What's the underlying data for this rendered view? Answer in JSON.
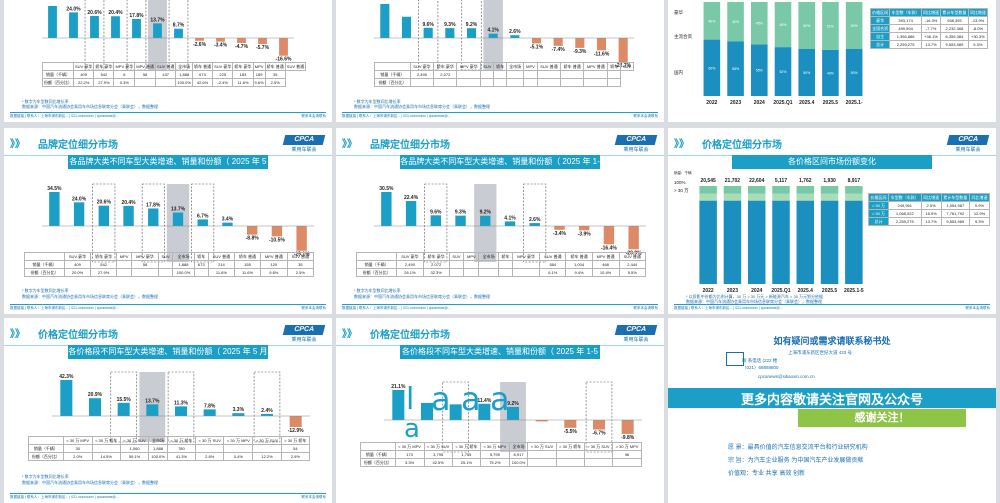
{
  "colors": {
    "bar": "#1c9fc6",
    "neg": "#dd8a66",
    "hatch": "#c9ccd2",
    "green": "#79c9a8",
    "green2": "#a8ddb5",
    "dark": "#1a6fb0"
  },
  "common": {
    "arrows": "》》",
    "logo_text": "CPCA",
    "logo_sub": "乘用车联会",
    "footer_left": "数据链接 | 联系人：上海市浦东新区... | 021-xxxxxxxxx | cpcanews@...",
    "footer_right": "联系本会请联系"
  },
  "slides": [
    {
      "id": "s1",
      "chart_data": {
        "type": "bar",
        "categories": [
          "SUV 豪华",
          "轿车 豪华",
          "MPV 豪华",
          "MPV 普通",
          "SUV 普通",
          "全市场",
          "轿车 普通",
          "SUV 豪华",
          "轿车 豪华",
          "MPV",
          "轿车 普通",
          "SUV 普通"
        ],
        "values": [
          30.0,
          24.0,
          20.6,
          20.4,
          17.8,
          13.7,
          8.7,
          -2.6,
          -3.4,
          -4.7,
          -5.7,
          -16.6
        ],
        "labels": [
          "",
          "24.0%",
          "20.6%",
          "20.4%",
          "17.8%",
          "13.7%",
          "8.7%",
          "-2.6%",
          "-3.4%",
          "-4.7%",
          "-5.7%",
          "-16.6%"
        ]
      },
      "table": {
        "rows": [
          [
            "销量（千辆）",
            "409",
            "542",
            "6",
            "58",
            "437",
            "1,888",
            "673",
            "225",
            "183",
            "189",
            "35"
          ],
          [
            "份额（百分比）",
            "22.2%",
            "27.9%",
            "0.3%",
            "",
            "",
            "100.0%",
            "42.6%",
            "-2.4%",
            "11.6%",
            "9.6%",
            "2.5%"
          ]
        ]
      },
      "note1": "* 数字为车型数同比增长率",
      "note2": "数据来源：中国汽车流通协会乘用车市场信息联席分会（乘联会），数据整理"
    },
    {
      "id": "s2",
      "chart_data": {
        "type": "bar",
        "categories": [
          "SUV 豪华",
          "轿车 豪华",
          "MPV 豪华",
          "SUV",
          "轿车",
          "全市场",
          "MPV",
          "SUV 普通",
          "轿车 普通",
          "MPV 普通",
          "轿车",
          "SUV"
        ],
        "values": [
          32.0,
          20.0,
          9.6,
          9.3,
          9.2,
          4.1,
          2.6,
          -5.1,
          -7.4,
          -9.3,
          -11.6,
          -22.7
        ],
        "labels": [
          "",
          "",
          "9.6%",
          "9.3%",
          "9.2%",
          "4.1%",
          "2.6%",
          "-5.1%",
          "-7.4%",
          "-9.3%",
          "-11.6%",
          "-22.7%"
        ]
      },
      "table": {
        "rows": [
          [
            "销量（千辆）",
            "2,490",
            "2,072",
            "",
            "",
            "",
            "",
            "",
            "",
            "",
            "",
            ""
          ],
          [
            "份额（百分比）",
            "",
            "",
            "",
            "",
            "",
            "",
            "",
            "",
            "",
            "",
            ""
          ]
        ]
      },
      "note1": "* 数字为车型数同比增长率",
      "note2": "数据来源：中国汽车流通协会乘用车市场信息联席分会（乘联会），数据整理"
    },
    {
      "id": "s3",
      "chart_data": {
        "type": "bar",
        "categories": [
          "2022",
          "2023",
          "2024",
          "2025.Q1",
          "2025.4",
          "2025.5",
          "2025.1-"
        ],
        "series": [
          {
            "name": "",
            "values": [
              60,
              58,
              55,
              52,
              50,
              49,
              50
            ]
          },
          {
            "name": "",
            "values": [
              40,
              42,
              45,
              48,
              50,
              51,
              50
            ]
          }
        ]
      },
      "side_table": {
        "head": [
          "价格区间",
          "车型数（车款）",
          "同比增速",
          "累计车型数量",
          "同比增速"
        ],
        "rows": [
          [
            "豪华",
            "393,174",
            "-16.3%",
            "938,393",
            "-13.9%"
          ],
          [
            "全国合资",
            "499,594",
            "-7.7%",
            "2,232,368",
            "-8.0%"
          ],
          [
            "自主",
            "1,356,886",
            "+36.1%",
            "6,359,384",
            "+30.3%"
          ],
          [
            "总计",
            "2,259,275",
            "13.7%",
            "9,553,989",
            "9.3%"
          ]
        ]
      },
      "row_labels": [
        "豪华",
        "主流合资",
        "国内"
      ]
    },
    {
      "id": "s4",
      "title": "品牌定位细分市场",
      "banner": "各品牌大类不同车型大类增速、销量和份额（ 2025 年 5 月 ）",
      "chart_data": {
        "type": "bar",
        "categories": [
          "SUV 豪华",
          "轿车 豪华",
          "MPV",
          "MPV 豪华",
          "SUV",
          "全市场",
          "轿车",
          "SUV 普通",
          "轿车 普通",
          "MPV 普通",
          "SUV 普通"
        ],
        "values": [
          34.5,
          24.0,
          20.6,
          20.4,
          17.8,
          13.7,
          6.7,
          3.4,
          -8.8,
          -10.5,
          -25.1
        ],
        "labels": [
          "34.5%",
          "24.0%",
          "20.6%",
          "20.4%",
          "17.8%",
          "13.7%",
          "6.7%",
          "3.4%",
          "-8.8%",
          "-10.5%",
          "-25.1%"
        ]
      },
      "table": {
        "rows": [
          [
            "销量（千辆）",
            "409",
            "542",
            "",
            "58",
            "",
            "1,888",
            "673",
            "214",
            "155",
            "120",
            "35"
          ],
          [
            "份额（百分比）",
            "20.0%",
            "27.9%",
            "",
            "",
            "",
            "100.0%",
            "",
            "11.6%",
            "11.6%",
            "9.6%",
            "2.5%"
          ]
        ]
      },
      "note1": "* 数字为车型数同比增长率",
      "note2": "数据来源：中国汽车流通协会乘用车市场信息联席分会（乘联会），数据整理"
    },
    {
      "id": "s5",
      "title": "品牌定位细分市场",
      "banner": "各品牌大类不同车型大类增速、销量和份额（ 2025 年 1-5",
      "chart_data": {
        "type": "bar",
        "categories": [
          "SUV 豪华",
          "轿车 豪华",
          "SUV",
          "MPV",
          "全市场",
          "轿车",
          "MPV 豪华",
          "SUV 普通",
          "轿车 普通",
          "MPV 普通",
          "SUV 普通"
        ],
        "values": [
          30.5,
          22.4,
          9.6,
          9.3,
          9.2,
          4.1,
          2.6,
          -3.4,
          -3.9,
          -16.4,
          -20.9
        ],
        "labels": [
          "30.5%",
          "22.4%",
          "9.6%",
          "9.3%",
          "9.2%",
          "4.1%",
          "2.6%",
          "-3.4%",
          "-3.9%",
          "-16.4%",
          "-20.9%"
        ]
      },
      "table": {
        "rows": [
          [
            "销量（千辆）",
            "2,490",
            "2,072",
            "",
            "",
            "",
            "",
            "",
            "584",
            "1,004",
            "468",
            "2,444"
          ],
          [
            "份额（百分比）",
            "26.1%",
            "32.3%",
            "",
            "",
            "",
            "",
            "",
            "6.1%",
            "9.4%",
            "10.4%",
            "5.5%"
          ]
        ]
      },
      "note1": "* 数字为车型数同比增长率",
      "note2": "数据来源：中国汽车流通协会乘用车市场信息联席分会（乘联会），数据整理"
    },
    {
      "id": "s6",
      "title": "价格定位细分市场",
      "banner": "各价格区间市场份额变化",
      "chart_data": {
        "type": "bar",
        "categories": [
          "2022",
          "2023",
          "2024",
          "2025.Q1",
          "2025.4",
          "2025.5",
          "2025.1-5"
        ],
        "totals": [
          "20,545",
          "21,702",
          "22,604",
          "5,117",
          "1,762",
          "1,930",
          "8,917"
        ],
        "series": [
          {
            "name": "",
            "values": [
              8,
              8,
              8,
              8,
              8,
              8,
              8
            ]
          },
          {
            "name": "",
            "values": [
              7,
              7,
              7,
              7,
              7,
              7,
              7
            ]
          },
          {
            "name": "",
            "values": [
              85,
              85,
              85,
              85,
              85,
              85,
              85
            ]
          }
        ]
      },
      "y_caption": "销量：千辆",
      "y_labels": [
        "100%",
        "> 30 万"
      ],
      "side_table": {
        "head": [
          "价格区间",
          "车型数（车款）",
          "同比增速",
          "累计车型数量",
          "同比增速"
        ],
        "rows": [
          [
            "> 30 万",
            "249,951",
            "2.5%",
            "1,054,987",
            "0.9%"
          ],
          [
            "> 30 万",
            "1,068,022",
            "15.9%",
            "7,761,792",
            "12.9%"
          ],
          [
            "总计",
            "2,259,275",
            "13.7%",
            "9,553,989",
            "9.3%"
          ]
        ]
      },
      "note1": "* 以投影中份额为比例计算，30 万 > 30 万元 > 新能源汽车 > 30 万元划分依据",
      "note2": "数据来源：中国汽车流通协会乘用车市场信息联席分会（乘联会），数据整理"
    },
    {
      "id": "s7",
      "title": "价格定位细分市场",
      "banner": "各价格段不同车型大类增速、销量和份额（ 2025 年 5 月 ）",
      "chart_data": {
        "type": "bar",
        "categories": [
          "< 30 万 MPV",
          "< 30 万 轿车",
          "< 30 万 SUV",
          "全市场",
          "< 30 万 轿车",
          "< 30 万 SUV",
          "< 30 万 MPV",
          "> 30 万 SUV",
          "> 30 万 轿车"
        ],
        "values": [
          42.3,
          20.9,
          15.5,
          13.7,
          11.3,
          7.8,
          3.3,
          2.4,
          -12.9
        ],
        "labels": [
          "42.3%",
          "20.9%",
          "15.5%",
          "13.7%",
          "11.3%",
          "7.8%",
          "3.3%",
          "2.4%",
          "-12.9%"
        ]
      },
      "table": {
        "rows": [
          [
            "销量（千辆）",
            "30",
            "",
            "1,060",
            "1,888",
            "780",
            "",
            "",
            "",
            "54"
          ],
          [
            "份额（百分比）",
            "2.0%",
            "14.5%",
            "59.1%",
            "100.0%",
            "41.3%",
            "2.8%",
            "0.4%",
            "12.2%",
            "2.9%"
          ]
        ]
      },
      "note1": "* 数字为车型数同比增长率",
      "note2": "数据来源：中国汽车流通协会乘用车市场信息联席分会（乘联会），数据整理"
    },
    {
      "id": "s8",
      "title": "价格定位细分市场",
      "banner": "各价格段不同车型大类增速、销量和份额（ 2025 年 1-5 月 ）",
      "chart_data": {
        "type": "bar",
        "categories": [
          "< 30 万 MPV",
          "< 30 万 SUV",
          "< 30 万 轿车",
          "< 30 万 MPV",
          "全市场",
          "< 30 万 SUV",
          "> 30 万 轿车",
          "> 30 万 SUV",
          "> 30 万 MPV"
        ],
        "values": [
          21.1,
          12.0,
          11.0,
          11.4,
          9.2,
          -1.0,
          -5.5,
          -6.7,
          -9.8
        ],
        "labels": [
          "21.1%",
          "",
          "",
          "11.4%",
          "9.2%",
          "",
          "-5.5%",
          "-6.7%",
          "-9.8%"
        ]
      },
      "glyphs": [
        "l",
        "a",
        "a",
        "a",
        "a"
      ],
      "table": {
        "rows": [
          [
            "销量（千辆）",
            "173",
            "3,795",
            "1,755",
            "5,795",
            "8,917",
            "",
            "",
            "",
            "96"
          ],
          [
            "份额（百分比）",
            "3.3%",
            "42.5%",
            "25.1%",
            "75.2%",
            "100.0%",
            "",
            "",
            "",
            ""
          ]
        ]
      },
      "note1": "",
      "note2": ""
    },
    {
      "id": "s9",
      "contact_title": "如有疑问或需求请联系秘书处",
      "contact_lines": [
        "上海市浦东新区世纪大道 433 号",
        "联 系电话 (222 楼",
        "（021）68888800",
        "cpcanews@sitiaoxin.com.cn"
      ],
      "follow": "更多内容敬请关注官网及公众号",
      "thanks": "感谢关注！",
      "mission": "愿  景：最具价值的汽车信息交流平台和行业研究机构",
      "purpose": "宗  旨：为汽车企业服务  为中国汽车产业发展做贡献",
      "values": "价值观：专业  共享  高效  创新"
    }
  ]
}
